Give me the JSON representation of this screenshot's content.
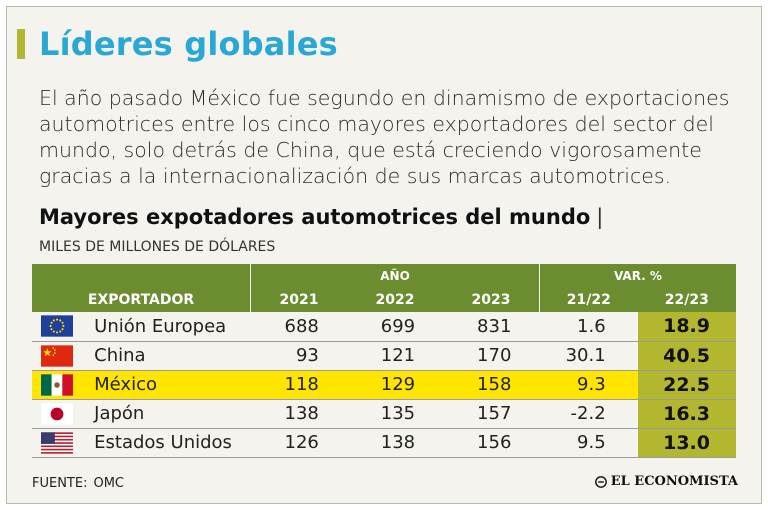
{
  "header": {
    "title": "Líderes globales",
    "intro": "El año pasado México fue segundo en dinamismo de exportaciones automotrices entre los cinco mayores exportadores del sector del mundo, solo detrás de China, que está creciendo vigorosamente gracias a la internacionalización de sus marcas automotrices."
  },
  "chart_data": {
    "type": "table",
    "title": "Mayores expotadores automotrices del mundo",
    "title_separator": "|",
    "units": "MILES DE MILLONES DE DÓLARES",
    "group_headers": {
      "year": "AÑO",
      "var": "VAR. %"
    },
    "columns": [
      "EXPORTADOR",
      "2021",
      "2022",
      "2023",
      "21/22",
      "22/23"
    ],
    "rows": [
      {
        "flag": "eu-flag-icon",
        "country": "Unión Europea",
        "v2021": "688",
        "v2022": "699",
        "v2023": "831",
        "var2122": "1.6",
        "var2223": "18.9"
      },
      {
        "flag": "china-flag-icon",
        "country": "China",
        "v2021": "93",
        "v2022": "121",
        "v2023": "170",
        "var2122": "30.1",
        "var2223": "40.5"
      },
      {
        "flag": "mexico-flag-icon",
        "country": "México",
        "v2021": "118",
        "v2022": "129",
        "v2023": "158",
        "var2122": "9.3",
        "var2223": "22.5"
      },
      {
        "flag": "japan-flag-icon",
        "country": "Japón",
        "v2021": "138",
        "v2022": "135",
        "v2023": "157",
        "var2122": "-2.2",
        "var2223": "16.3"
      },
      {
        "flag": "usa-flag-icon",
        "country": "Estados Unidos",
        "v2021": "126",
        "v2022": "138",
        "v2023": "156",
        "var2122": "9.5",
        "var2223": "13.0"
      }
    ],
    "highlighted_row": "México"
  },
  "footer": {
    "source_label": "FUENTE:",
    "source_value": "OMC",
    "brand": "EL ECONOMISTA"
  },
  "colors": {
    "title": "#29a8d6",
    "header_green": "#6b8c2f",
    "accent_olive": "#b2b72f",
    "highlight_yellow": "#ffe500"
  }
}
